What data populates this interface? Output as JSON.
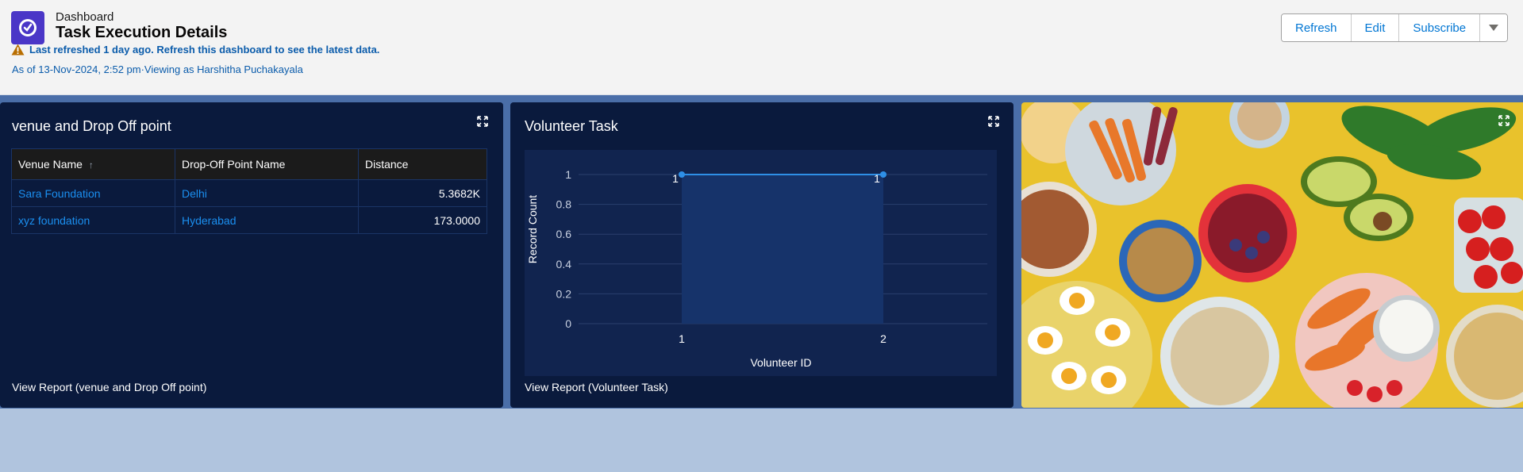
{
  "header": {
    "breadcrumb": "Dashboard",
    "title": "Task Execution Details",
    "warning": "Last refreshed 1 day ago. Refresh this dashboard to see the latest data.",
    "meta": "As of 13-Nov-2024, 2:52 pm·Viewing as Harshitha Puchakayala",
    "buttons": {
      "refresh": "Refresh",
      "edit": "Edit",
      "subscribe": "Subscribe"
    }
  },
  "venue_card": {
    "title": "venue and Drop Off point",
    "columns": [
      "Venue Name",
      "Drop-Off Point Name",
      "Distance"
    ],
    "sort_indicator": "↑",
    "rows": [
      {
        "venue": "Sara Foundation",
        "drop": "Delhi",
        "distance": "5.3682K"
      },
      {
        "venue": "xyz foundation",
        "drop": "Hyderabad",
        "distance": "173.0000"
      }
    ],
    "view_report": "View Report (venue and Drop Off point)"
  },
  "volunteer_card": {
    "title": "Volunteer Task",
    "view_report": "View Report (Volunteer Task)"
  },
  "chart_data": {
    "type": "area",
    "title": "Volunteer Task",
    "xlabel": "Volunteer ID",
    "ylabel": "Record Count",
    "categories": [
      "1",
      "2"
    ],
    "series": [
      {
        "values": [
          1,
          1
        ]
      }
    ],
    "data_labels": [
      "1",
      "1"
    ],
    "yticks": [
      "1",
      "0.8",
      "0.6",
      "0.4",
      "0.2",
      "0"
    ],
    "ylim": [
      0,
      1
    ],
    "grid": true,
    "colors": {
      "line": "#2e8fe6",
      "fill": "#16336a",
      "background": "#11244f"
    }
  },
  "colors": {
    "accent": "#0176d3",
    "link": "#0b5cab",
    "card": "#0a1a3d",
    "warning": "#b86e00"
  },
  "icons": {
    "app": "dashboard-gauge-icon",
    "warning": "warning-icon",
    "expand": "expand-icon",
    "menu": "chevron-down-icon"
  }
}
